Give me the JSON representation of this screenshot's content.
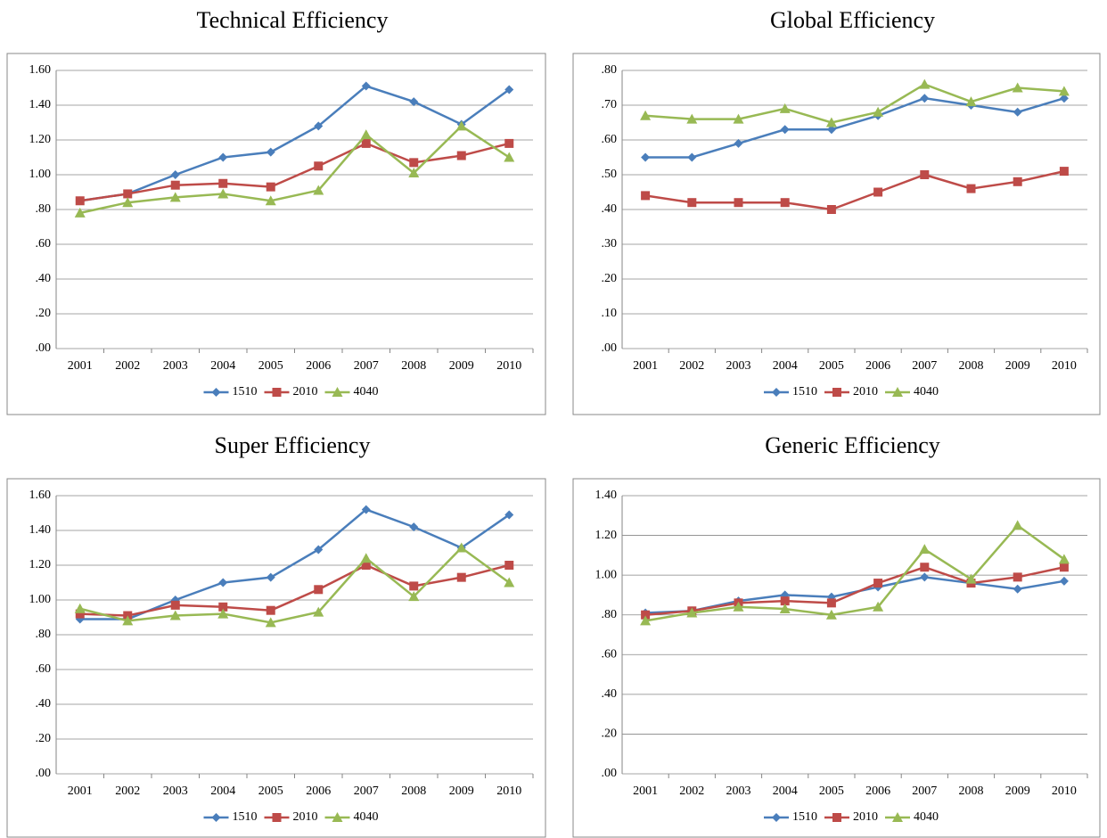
{
  "chart_data": [
    {
      "type": "line",
      "title": "Technical Efficiency",
      "categories": [
        "2001",
        "2002",
        "2003",
        "2004",
        "2005",
        "2006",
        "2007",
        "2008",
        "2009",
        "2010"
      ],
      "series": [
        {
          "name": "1510",
          "color": "#4a7ebb",
          "marker": "diamond",
          "values": [
            0.85,
            0.89,
            1.0,
            1.1,
            1.13,
            1.28,
            1.51,
            1.42,
            1.29,
            1.49
          ]
        },
        {
          "name": "2010",
          "color": "#be4b48",
          "marker": "square",
          "values": [
            0.85,
            0.89,
            0.94,
            0.95,
            0.93,
            1.05,
            1.18,
            1.07,
            1.11,
            1.18
          ]
        },
        {
          "name": "4040",
          "color": "#98b954",
          "marker": "triangle",
          "values": [
            0.78,
            0.84,
            0.87,
            0.89,
            0.85,
            0.91,
            1.23,
            1.01,
            1.28,
            1.1
          ]
        }
      ],
      "ylim": [
        0,
        1.6
      ],
      "yticks": [
        {
          "value": 0,
          "label": ".00"
        },
        {
          "value": 0.2,
          "label": ".20"
        },
        {
          "value": 0.4,
          "label": ".40"
        },
        {
          "value": 0.6,
          "label": ".60"
        },
        {
          "value": 0.8,
          "label": ".80"
        },
        {
          "value": 1.0,
          "label": "1.00"
        },
        {
          "value": 1.2,
          "label": "1.20"
        },
        {
          "value": 1.4,
          "label": "1.40"
        },
        {
          "value": 1.6,
          "label": "1.60"
        }
      ],
      "grid": true,
      "legend": "bottom"
    },
    {
      "type": "line",
      "title": "Global Efficiency",
      "categories": [
        "2001",
        "2002",
        "2003",
        "2004",
        "2005",
        "2006",
        "2007",
        "2008",
        "2009",
        "2010"
      ],
      "series": [
        {
          "name": "1510",
          "color": "#4a7ebb",
          "marker": "diamond",
          "values": [
            0.55,
            0.55,
            0.59,
            0.63,
            0.63,
            0.67,
            0.72,
            0.7,
            0.68,
            0.72
          ]
        },
        {
          "name": "2010",
          "color": "#be4b48",
          "marker": "square",
          "values": [
            0.44,
            0.42,
            0.42,
            0.42,
            0.4,
            0.45,
            0.5,
            0.46,
            0.48,
            0.51
          ]
        },
        {
          "name": "4040",
          "color": "#98b954",
          "marker": "triangle",
          "values": [
            0.67,
            0.66,
            0.66,
            0.69,
            0.65,
            0.68,
            0.76,
            0.71,
            0.75,
            0.74
          ]
        }
      ],
      "ylim": [
        0,
        0.8
      ],
      "yticks": [
        {
          "value": 0,
          "label": ".00"
        },
        {
          "value": 0.1,
          "label": ".10"
        },
        {
          "value": 0.2,
          "label": ".20"
        },
        {
          "value": 0.3,
          "label": ".30"
        },
        {
          "value": 0.4,
          "label": ".40"
        },
        {
          "value": 0.5,
          "label": ".50"
        },
        {
          "value": 0.6,
          "label": ".60"
        },
        {
          "value": 0.7,
          "label": ".70"
        },
        {
          "value": 0.8,
          "label": ".80"
        }
      ],
      "grid": true,
      "legend": "bottom"
    },
    {
      "type": "line",
      "title": "Super Efficiency",
      "categories": [
        "2001",
        "2002",
        "2003",
        "2004",
        "2005",
        "2006",
        "2007",
        "2008",
        "2009",
        "2010"
      ],
      "series": [
        {
          "name": "1510",
          "color": "#4a7ebb",
          "marker": "diamond",
          "values": [
            0.89,
            0.89,
            1.0,
            1.1,
            1.13,
            1.29,
            1.52,
            1.42,
            1.3,
            1.49
          ]
        },
        {
          "name": "2010",
          "color": "#be4b48",
          "marker": "square",
          "values": [
            0.92,
            0.91,
            0.97,
            0.96,
            0.94,
            1.06,
            1.2,
            1.08,
            1.13,
            1.2
          ]
        },
        {
          "name": "4040",
          "color": "#98b954",
          "marker": "triangle",
          "values": [
            0.95,
            0.88,
            0.91,
            0.92,
            0.87,
            0.93,
            1.24,
            1.02,
            1.3,
            1.1
          ]
        }
      ],
      "ylim": [
        0,
        1.6
      ],
      "yticks": [
        {
          "value": 0,
          "label": ".00"
        },
        {
          "value": 0.2,
          "label": ".20"
        },
        {
          "value": 0.4,
          "label": ".40"
        },
        {
          "value": 0.6,
          "label": ".60"
        },
        {
          "value": 0.8,
          "label": ".80"
        },
        {
          "value": 1.0,
          "label": "1.00"
        },
        {
          "value": 1.2,
          "label": "1.20"
        },
        {
          "value": 1.4,
          "label": "1.40"
        },
        {
          "value": 1.6,
          "label": "1.60"
        }
      ],
      "grid": true,
      "legend": "bottom"
    },
    {
      "type": "line",
      "title": "Generic Efficiency",
      "categories": [
        "2001",
        "2002",
        "2003",
        "2004",
        "2005",
        "2006",
        "2007",
        "2008",
        "2009",
        "2010"
      ],
      "series": [
        {
          "name": "1510",
          "color": "#4a7ebb",
          "marker": "diamond",
          "values": [
            0.81,
            0.82,
            0.87,
            0.9,
            0.89,
            0.94,
            0.99,
            0.96,
            0.93,
            0.97
          ]
        },
        {
          "name": "2010",
          "color": "#be4b48",
          "marker": "square",
          "values": [
            0.8,
            0.82,
            0.86,
            0.87,
            0.86,
            0.96,
            1.04,
            0.96,
            0.99,
            1.04
          ]
        },
        {
          "name": "4040",
          "color": "#98b954",
          "marker": "triangle",
          "values": [
            0.77,
            0.81,
            0.84,
            0.83,
            0.8,
            0.84,
            1.13,
            0.98,
            1.25,
            1.08
          ]
        }
      ],
      "ylim": [
        0,
        1.4
      ],
      "yticks": [
        {
          "value": 0,
          "label": ".00"
        },
        {
          "value": 0.2,
          "label": ".20"
        },
        {
          "value": 0.4,
          "label": ".40"
        },
        {
          "value": 0.6,
          "label": ".60"
        },
        {
          "value": 0.8,
          "label": ".80"
        },
        {
          "value": 1.0,
          "label": "1.00"
        },
        {
          "value": 1.2,
          "label": "1.20"
        },
        {
          "value": 1.4,
          "label": "1.40"
        }
      ],
      "grid": true,
      "legend": "bottom"
    }
  ]
}
